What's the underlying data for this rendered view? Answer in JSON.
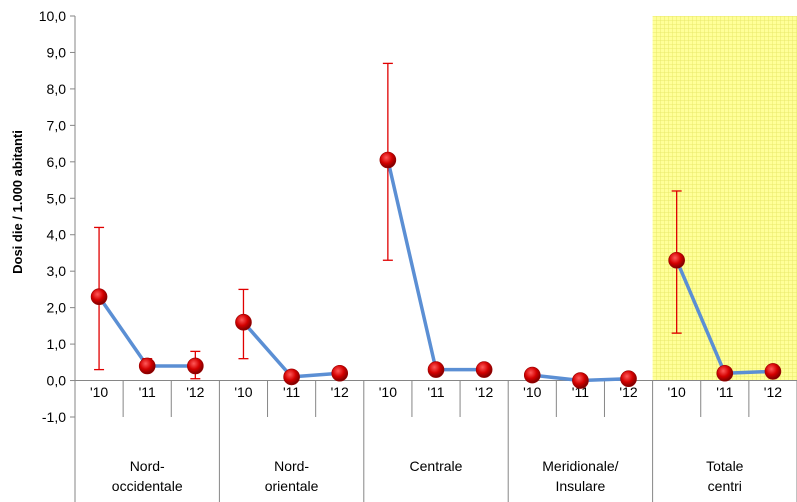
{
  "chart_data": {
    "type": "line",
    "title": "",
    "ylabel": "Dosi die / 1.000 abitanti",
    "xlabel": "",
    "ylim": [
      -1,
      10
    ],
    "yticks": [
      -1,
      0,
      1,
      2,
      3,
      4,
      5,
      6,
      7,
      8,
      9,
      10
    ],
    "ytick_labels": [
      "-1,0",
      "0,0",
      "1,0",
      "2,0",
      "3,0",
      "4,0",
      "5,0",
      "6,0",
      "7,0",
      "8,0",
      "9,0",
      "10,0"
    ],
    "grid": false,
    "groups": [
      {
        "label": "Nord-\noccidentale",
        "years": [
          "'10",
          "'11",
          "'12"
        ],
        "values": [
          2.3,
          0.4,
          0.4
        ],
        "err_low": [
          0.3,
          0.3,
          0.05
        ],
        "err_high": [
          4.2,
          0.6,
          0.8
        ],
        "highlight": false
      },
      {
        "label": "Nord-\norientale",
        "years": [
          "'10",
          "'11",
          "'12"
        ],
        "values": [
          1.6,
          0.1,
          0.2
        ],
        "err_low": [
          0.6,
          null,
          null
        ],
        "err_high": [
          2.5,
          null,
          null
        ],
        "highlight": false
      },
      {
        "label": "Centrale",
        "years": [
          "'10",
          "'11",
          "'12"
        ],
        "values": [
          6.05,
          0.3,
          0.3
        ],
        "err_low": [
          3.3,
          null,
          null
        ],
        "err_high": [
          8.7,
          null,
          null
        ],
        "highlight": false
      },
      {
        "label": "Meridionale/\nInsulare",
        "years": [
          "'10",
          "'11",
          "'12"
        ],
        "values": [
          0.15,
          0.0,
          0.05
        ],
        "err_low": [
          null,
          null,
          null
        ],
        "err_high": [
          null,
          null,
          null
        ],
        "highlight": false
      },
      {
        "label": "Totale\ncentri",
        "years": [
          "'10",
          "'11",
          "'12"
        ],
        "values": [
          3.3,
          0.2,
          0.25
        ],
        "err_low": [
          1.3,
          null,
          null
        ],
        "err_high": [
          5.2,
          null,
          null
        ],
        "highlight": true
      }
    ],
    "colors": {
      "line": "#5b8fd4",
      "marker": "#d40000",
      "error": "#e00000",
      "highlight_bg": "#ffff99",
      "highlight_grid": "#e8e86a",
      "axis": "#868686"
    }
  }
}
